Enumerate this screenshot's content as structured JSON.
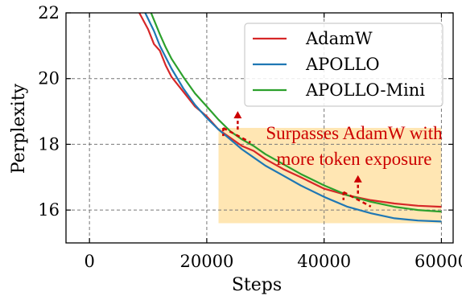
{
  "chart_data": {
    "type": "line",
    "xlabel": "Steps",
    "ylabel": "Perplexity",
    "xlim": [
      -4000,
      62000
    ],
    "ylim": [
      15,
      22
    ],
    "xticks": [
      0,
      20000,
      40000,
      60000
    ],
    "yticks": [
      16,
      18,
      20,
      22
    ],
    "grid": true,
    "legend_position": "top-right",
    "series": [
      {
        "name": "AdamW",
        "color": "#d62728",
        "x": [
          8500,
          10000,
          11000,
          12000,
          13000,
          14000,
          16000,
          18000,
          20000,
          22000,
          24000,
          26000,
          28000,
          30000,
          33000,
          36000,
          40000,
          44000,
          48000,
          52000,
          56000,
          60000
        ],
        "y": [
          22.0,
          21.5,
          21.05,
          20.85,
          20.4,
          20.05,
          19.6,
          19.15,
          18.85,
          18.45,
          18.2,
          17.95,
          17.8,
          17.55,
          17.25,
          17.0,
          16.65,
          16.45,
          16.3,
          16.2,
          16.13,
          16.1
        ]
      },
      {
        "name": "APOLLO",
        "color": "#1f77b4",
        "x": [
          9500,
          11000,
          12000,
          13000,
          14000,
          16000,
          18000,
          20000,
          22000,
          24000,
          26000,
          28000,
          30000,
          33000,
          36000,
          40000,
          44000,
          48000,
          52000,
          56000,
          60000
        ],
        "y": [
          22.0,
          21.45,
          21.0,
          20.65,
          20.3,
          19.7,
          19.2,
          18.8,
          18.45,
          18.15,
          17.85,
          17.6,
          17.35,
          17.05,
          16.75,
          16.4,
          16.1,
          15.9,
          15.75,
          15.68,
          15.65
        ]
      },
      {
        "name": "APOLLO-Mini",
        "color": "#2ca02c",
        "x": [
          10500,
          12000,
          13000,
          14000,
          16000,
          18000,
          20000,
          22000,
          24000,
          26000,
          28000,
          30000,
          33000,
          36000,
          40000,
          44000,
          48000,
          52000,
          56000,
          60000
        ],
        "y": [
          22.0,
          21.35,
          20.95,
          20.6,
          20.05,
          19.55,
          19.15,
          18.75,
          18.4,
          18.15,
          17.95,
          17.7,
          17.4,
          17.1,
          16.75,
          16.45,
          16.25,
          16.1,
          16.0,
          15.95
        ]
      }
    ],
    "annotation": {
      "lines": [
        "Surpasses AdamW with",
        "more token exposure"
      ],
      "color": "#cc0000",
      "region": {
        "x": [
          22000,
          60000
        ],
        "y": [
          15.6,
          18.5
        ],
        "color": "#ffdd99"
      },
      "markers": [
        {
          "x": 25000,
          "y": 18.35
        },
        {
          "x": 45500,
          "y": 16.4
        }
      ]
    }
  }
}
